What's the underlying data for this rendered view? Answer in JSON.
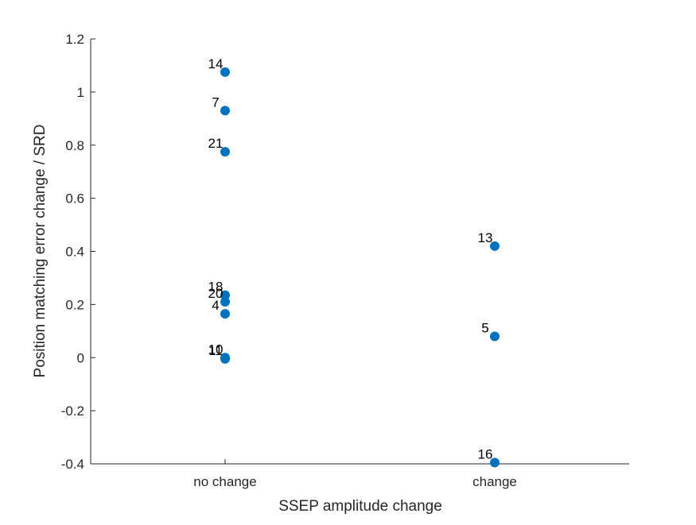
{
  "chart_data": {
    "type": "scatter",
    "title": "",
    "xlabel": "SSEP amplitude change",
    "ylabel": "Position matching error change / SRD",
    "categories": [
      "no change",
      "change"
    ],
    "ylim": [
      -0.4,
      1.2
    ],
    "yticks": [
      "-0.4",
      "-0.2",
      "0",
      "0.2",
      "0.4",
      "0.6",
      "0.8",
      "1",
      "1.2"
    ],
    "grid": false,
    "legend": "none",
    "marker_color": "#0072BD",
    "points": [
      {
        "category": "no change",
        "y": 1.075,
        "label": "14"
      },
      {
        "category": "no change",
        "y": 0.93,
        "label": "7"
      },
      {
        "category": "no change",
        "y": 0.775,
        "label": "21"
      },
      {
        "category": "no change",
        "y": 0.235,
        "label": "18"
      },
      {
        "category": "no change",
        "y": 0.21,
        "label": "20"
      },
      {
        "category": "no change",
        "y": 0.165,
        "label": "4"
      },
      {
        "category": "no change",
        "y": 0.0,
        "label": "10"
      },
      {
        "category": "no change",
        "y": -0.005,
        "label": "11"
      },
      {
        "category": "change",
        "y": 0.42,
        "label": "13"
      },
      {
        "category": "change",
        "y": 0.08,
        "label": "5"
      },
      {
        "category": "change",
        "y": -0.395,
        "label": "16"
      }
    ]
  }
}
